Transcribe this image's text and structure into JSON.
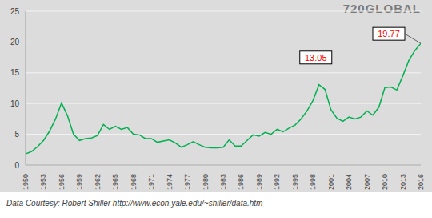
{
  "chart_data": {
    "type": "line",
    "logo": "720GLOBAL",
    "source": "Data Courtesy: Robert Shiller http://www.econ.yale.edu/~shiller/data.htm",
    "x": [
      1950,
      1951,
      1952,
      1953,
      1954,
      1955,
      1956,
      1957,
      1958,
      1959,
      1960,
      1961,
      1962,
      1963,
      1964,
      1965,
      1966,
      1967,
      1968,
      1969,
      1970,
      1971,
      1972,
      1973,
      1974,
      1975,
      1976,
      1977,
      1978,
      1979,
      1980,
      1981,
      1982,
      1983,
      1984,
      1985,
      1986,
      1987,
      1988,
      1989,
      1990,
      1991,
      1992,
      1993,
      1994,
      1995,
      1996,
      1997,
      1998,
      1999,
      2000,
      2001,
      2002,
      2003,
      2004,
      2005,
      2006,
      2007,
      2008,
      2009,
      2010,
      2011,
      2012,
      2013,
      2014,
      2015,
      2016
    ],
    "values": [
      1.8,
      2.2,
      3.0,
      4.0,
      5.5,
      7.5,
      10.1,
      8.0,
      5.0,
      4.0,
      4.3,
      4.4,
      4.8,
      6.6,
      5.8,
      6.3,
      5.8,
      6.1,
      5.0,
      4.9,
      4.3,
      4.3,
      3.7,
      3.9,
      4.1,
      3.6,
      2.9,
      3.3,
      3.8,
      3.3,
      2.9,
      2.8,
      2.8,
      2.9,
      4.1,
      3.1,
      3.1,
      4.0,
      4.9,
      4.7,
      5.3,
      5.0,
      5.8,
      5.4,
      6.0,
      6.5,
      7.5,
      8.8,
      10.5,
      13.05,
      12.3,
      9.0,
      7.6,
      7.1,
      7.8,
      7.5,
      7.8,
      8.8,
      8.1,
      9.4,
      12.6,
      12.7,
      12.2,
      14.5,
      17.0,
      18.6,
      19.77
    ],
    "color": "#00b050",
    "xlim": [
      1950,
      2016
    ],
    "xticks": [
      1950,
      1953,
      1956,
      1959,
      1962,
      1965,
      1968,
      1971,
      1974,
      1977,
      1980,
      1983,
      1986,
      1989,
      1992,
      1995,
      1998,
      2001,
      2004,
      2007,
      2010,
      2013,
      2016
    ],
    "ylim": [
      0,
      25
    ],
    "yticks": [
      0,
      5,
      10,
      15,
      20,
      25
    ],
    "grid": true,
    "annotations": [
      {
        "x": 1999,
        "y": 13.05,
        "text": "13.05"
      },
      {
        "x": 2016,
        "y": 19.77,
        "text": "19.77"
      }
    ]
  }
}
